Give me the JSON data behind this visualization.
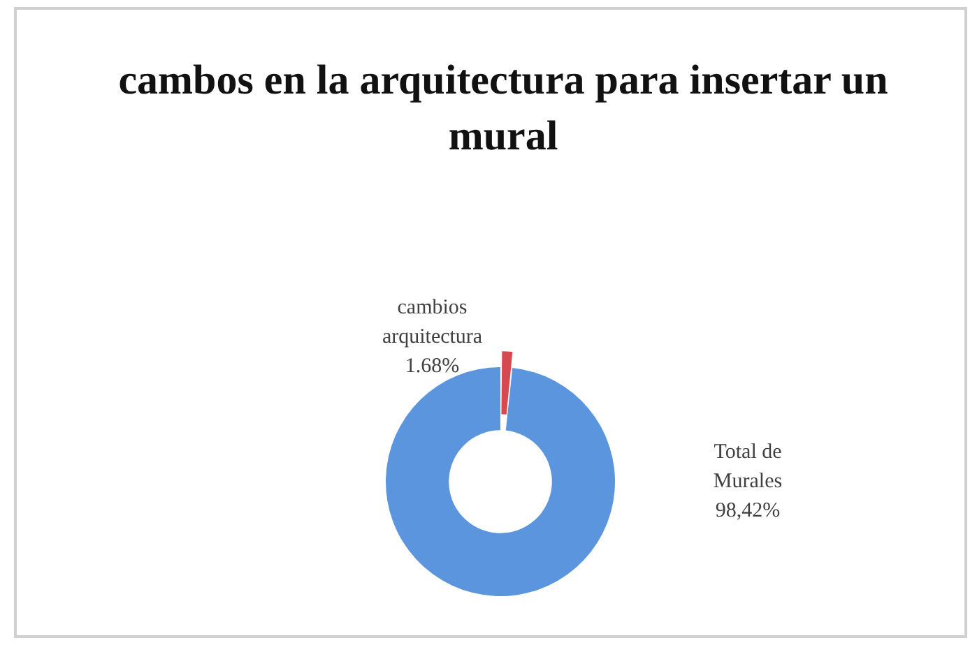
{
  "chart_data": {
    "type": "donut",
    "title": "cambos en la arquitectura para insertar un mural",
    "categories": [
      "cambios arquitectura",
      "Total de Murales"
    ],
    "values": [
      1.68,
      98.42
    ],
    "value_labels": [
      "1.68%",
      "98,42%"
    ],
    "colors": [
      "#d44a4f",
      "#5b95dd"
    ],
    "legend": false
  }
}
